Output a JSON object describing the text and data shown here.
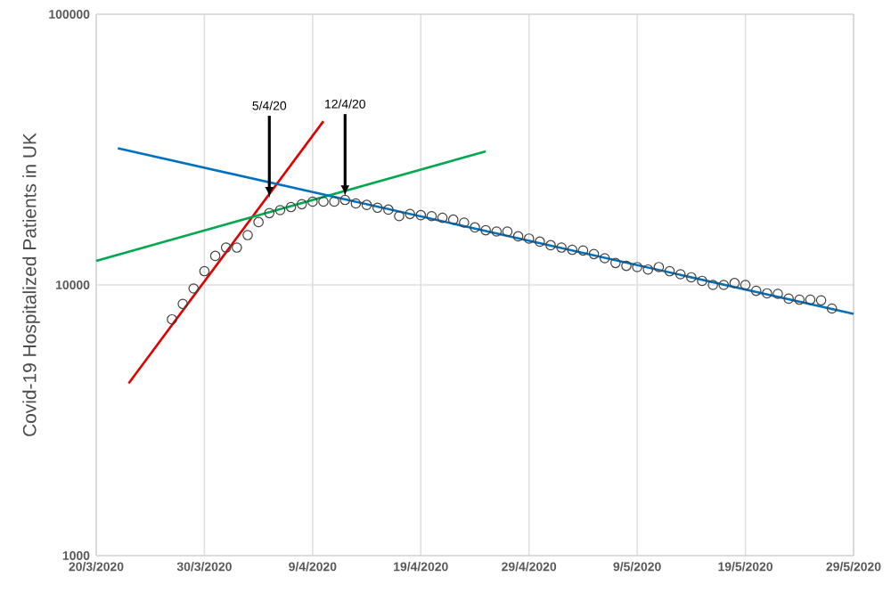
{
  "chart_data": {
    "type": "scatter",
    "ylabel": "Covid-19 Hospitalized Patients in UK",
    "log": "y",
    "grid": true,
    "xlim": [
      "2020-03-20",
      "2020-05-29"
    ],
    "xticks": [
      {
        "value": "2020-03-20",
        "label": "20/3/2020"
      },
      {
        "value": "2020-03-30",
        "label": "30/3/2020"
      },
      {
        "value": "2020-04-09",
        "label": "9/4/2020"
      },
      {
        "value": "2020-04-19",
        "label": "19/4/2020"
      },
      {
        "value": "2020-04-29",
        "label": "29/4/2020"
      },
      {
        "value": "2020-05-09",
        "label": "9/5/2020"
      },
      {
        "value": "2020-05-19",
        "label": "19/5/2020"
      },
      {
        "value": "2020-05-29",
        "label": "29/5/2020"
      }
    ],
    "ylim": [
      1000,
      100000
    ],
    "yticks": [
      1000,
      10000,
      100000
    ],
    "series": [
      {
        "marker": "circle",
        "color": "#404040",
        "x": [
          "2020-03-27",
          "2020-03-28",
          "2020-03-29",
          "2020-03-30",
          "2020-03-31",
          "2020-04-01",
          "2020-04-02",
          "2020-04-03",
          "2020-04-04",
          "2020-04-05",
          "2020-04-06",
          "2020-04-07",
          "2020-04-08",
          "2020-04-09",
          "2020-04-10",
          "2020-04-11",
          "2020-04-12",
          "2020-04-13",
          "2020-04-14",
          "2020-04-15",
          "2020-04-16",
          "2020-04-17",
          "2020-04-18",
          "2020-04-19",
          "2020-04-20",
          "2020-04-21",
          "2020-04-22",
          "2020-04-23",
          "2020-04-24",
          "2020-04-25",
          "2020-04-26",
          "2020-04-27",
          "2020-04-28",
          "2020-04-29",
          "2020-04-30",
          "2020-05-01",
          "2020-05-02",
          "2020-05-03",
          "2020-05-04",
          "2020-05-05",
          "2020-05-06",
          "2020-05-07",
          "2020-05-08",
          "2020-05-09",
          "2020-05-10",
          "2020-05-11",
          "2020-05-12",
          "2020-05-13",
          "2020-05-14",
          "2020-05-15",
          "2020-05-16",
          "2020-05-17",
          "2020-05-18",
          "2020-05-19",
          "2020-05-20",
          "2020-05-21",
          "2020-05-22",
          "2020-05-23",
          "2020-05-24",
          "2020-05-25",
          "2020-05-26",
          "2020-05-27"
        ],
        "values": [
          7460,
          8510,
          9700,
          11240,
          12800,
          13740,
          13740,
          15280,
          17070,
          18420,
          18890,
          19390,
          19870,
          20300,
          20300,
          20300,
          20600,
          20000,
          19750,
          19280,
          18980,
          17950,
          18280,
          18100,
          17950,
          17700,
          17430,
          16990,
          16310,
          15920,
          15750,
          15750,
          15120,
          14830,
          14450,
          14020,
          13740,
          13480,
          13400,
          13000,
          12550,
          12050,
          11760,
          11640,
          11400,
          11640,
          11240,
          10950,
          10670,
          10350,
          10000,
          10000,
          10160,
          10000,
          9510,
          9310,
          9270,
          8900,
          8820,
          8820,
          8770,
          8180
        ]
      },
      {
        "type": "line",
        "color": "#e00000",
        "x": [
          "2020-03-23",
          "2020-04-10"
        ],
        "values": [
          4330,
          40260
        ]
      },
      {
        "type": "line",
        "color": "#00a84f",
        "x": [
          "2020-03-20",
          "2020-04-25"
        ],
        "values": [
          12270,
          31150
        ]
      },
      {
        "type": "line",
        "color": "#0070c0",
        "x": [
          "2020-03-22",
          "2020-05-29"
        ],
        "values": [
          32000,
          7820
        ]
      }
    ],
    "annotations": [
      {
        "text": "5/4/20",
        "x": "2020-04-05",
        "y": 21000
      },
      {
        "text": "12/4/20",
        "x": "2020-04-12",
        "y": 21300
      }
    ]
  }
}
